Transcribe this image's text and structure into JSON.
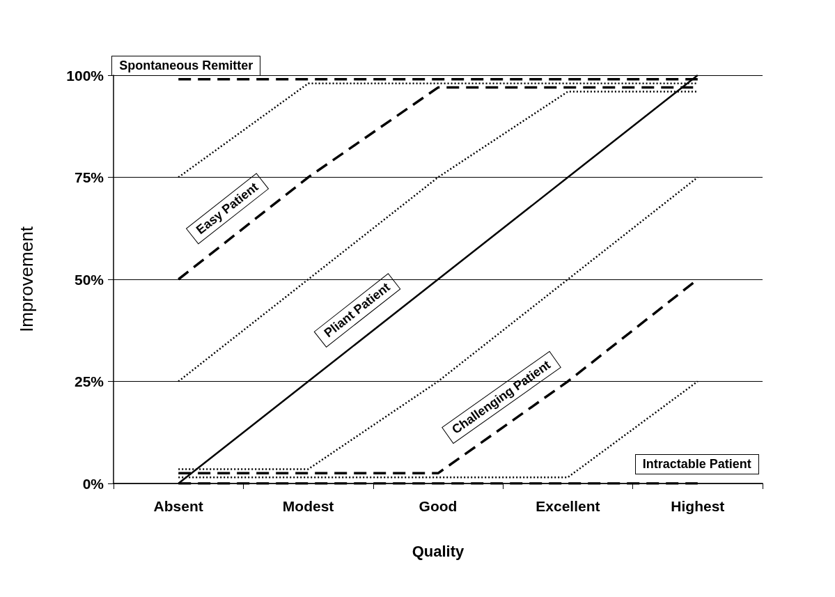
{
  "chart_data": {
    "type": "line",
    "xlabel": "Quality",
    "ylabel": "Improvement",
    "categories": [
      "Absent",
      "Modest",
      "Good",
      "Excellent",
      "Highest"
    ],
    "ylim": [
      0,
      100
    ],
    "yticks": [
      {
        "value": 0,
        "label": "0%"
      },
      {
        "value": 25,
        "label": "25%"
      },
      {
        "value": 50,
        "label": "50%"
      },
      {
        "value": 75,
        "label": "75%"
      },
      {
        "value": 100,
        "label": "100%"
      }
    ],
    "grid": "y",
    "marker": "none",
    "series": [
      {
        "name": "Spontaneous Remitter",
        "color": "#000000",
        "line_style": "dashed",
        "values": [
          99,
          99,
          99,
          99,
          99
        ]
      },
      {
        "color": "#000000",
        "line_style": "dotted",
        "values": [
          75,
          98,
          98,
          98,
          98
        ]
      },
      {
        "name": "Easy Patient",
        "color": "#000000",
        "line_style": "dashed",
        "values": [
          50,
          75,
          97,
          97,
          97
        ]
      },
      {
        "color": "#000000",
        "line_style": "dotted",
        "values": [
          25,
          50,
          75,
          96,
          96
        ]
      },
      {
        "name": "Pliant Patient",
        "color": "#000000",
        "line_style": "solid",
        "values": [
          0,
          25,
          50,
          75,
          100
        ]
      },
      {
        "color": "#000000",
        "line_style": "dotted",
        "values": [
          3.5,
          3.5,
          25,
          50,
          75
        ]
      },
      {
        "name": "Challenging Patient",
        "color": "#000000",
        "line_style": "dashed",
        "values": [
          2.5,
          2.5,
          2.5,
          25,
          50
        ]
      },
      {
        "color": "#000000",
        "line_style": "dotted",
        "values": [
          1.5,
          1.5,
          1.5,
          1.5,
          25
        ]
      },
      {
        "name": "Intractable Patient",
        "color": "#000000",
        "line_style": "dashed",
        "values": [
          0,
          0,
          0,
          0,
          0
        ]
      }
    ]
  }
}
